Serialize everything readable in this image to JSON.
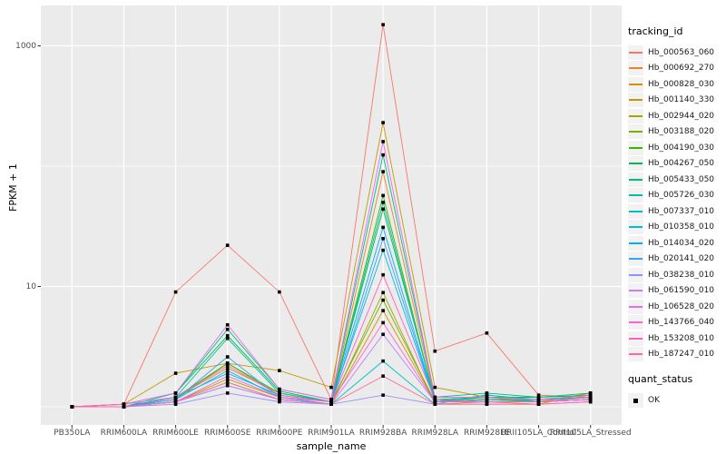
{
  "chart_data": {
    "type": "line",
    "xlabel": "sample_name",
    "ylabel": "FPKM + 1",
    "y_scale": "log10",
    "y_major_ticks": [
      {
        "label": "10",
        "value": 10
      },
      {
        "label": "1000",
        "value": 1000
      }
    ],
    "y_minor_values": [
      1,
      100
    ],
    "categories": [
      "PB350LA",
      "RRIM600LA",
      "RRIM600LE",
      "RRIM600SE",
      "RRIM600PE",
      "RRIM901LA",
      "RRIM928BA",
      "RRIM928LA",
      "RRIM928LE",
      "RRII105LA_Control",
      "RRII105LA_Stressed"
    ],
    "series": [
      {
        "name": "Hb_000563_060",
        "color": "#F8766D",
        "values": [
          1.0,
          1.05,
          9.0,
          22,
          9.0,
          1.15,
          1500,
          2.9,
          4.1,
          1.25,
          1.2
        ]
      },
      {
        "name": "Hb_000692_270",
        "color": "#EA8331",
        "values": [
          1.0,
          1.0,
          1.2,
          2.1,
          1.3,
          1.1,
          90,
          1.15,
          1.1,
          1.1,
          1.15
        ]
      },
      {
        "name": "Hb_000828_030",
        "color": "#D89000",
        "values": [
          1.0,
          1.0,
          1.1,
          1.6,
          1.15,
          1.05,
          6.3,
          1.1,
          1.1,
          1.05,
          1.3
        ]
      },
      {
        "name": "Hb_001140_330",
        "color": "#C09B00",
        "values": [
          1.0,
          1.05,
          1.9,
          2.3,
          2.0,
          1.45,
          230,
          1.45,
          1.2,
          1.1,
          1.3
        ]
      },
      {
        "name": "Hb_002944_020",
        "color": "#A3A500",
        "values": [
          1.0,
          1.0,
          1.1,
          1.7,
          1.2,
          1.05,
          8.9,
          1.05,
          1.1,
          1.1,
          1.2
        ]
      },
      {
        "name": "Hb_003188_020",
        "color": "#7CAE00",
        "values": [
          1.0,
          1.0,
          1.15,
          2.3,
          1.25,
          1.1,
          7.7,
          1.1,
          1.15,
          1.15,
          1.2
        ]
      },
      {
        "name": "Hb_004190_030",
        "color": "#39B600",
        "values": [
          1.0,
          1.0,
          1.2,
          2.3,
          1.3,
          1.1,
          57,
          1.1,
          1.2,
          1.15,
          1.25
        ]
      },
      {
        "name": "Hb_004267_050",
        "color": "#00BB4E",
        "values": [
          1.0,
          1.05,
          1.3,
          3.9,
          1.35,
          1.1,
          44,
          1.15,
          1.2,
          1.2,
          1.25
        ]
      },
      {
        "name": "Hb_005433_050",
        "color": "#00BF7D",
        "values": [
          1.0,
          1.0,
          1.3,
          4.4,
          1.4,
          1.15,
          124,
          1.2,
          1.3,
          1.2,
          1.3
        ]
      },
      {
        "name": "Hb_005726_030",
        "color": "#00C1A3",
        "values": [
          1.0,
          1.0,
          1.2,
          3.7,
          1.3,
          1.1,
          50,
          1.1,
          1.25,
          1.15,
          1.2
        ]
      },
      {
        "name": "Hb_007337_010",
        "color": "#00BFC4",
        "values": [
          1.0,
          1.0,
          1.1,
          1.5,
          1.15,
          1.05,
          2.4,
          1.05,
          1.26,
          1.1,
          1.15
        ]
      },
      {
        "name": "Hb_010358_010",
        "color": "#00BAE0",
        "values": [
          1.0,
          1.0,
          1.15,
          2.0,
          1.2,
          1.1,
          20,
          1.1,
          1.15,
          1.1,
          1.2
        ]
      },
      {
        "name": "Hb_014034_020",
        "color": "#00B0F6",
        "values": [
          1.0,
          1.0,
          1.2,
          1.9,
          1.25,
          1.1,
          31,
          1.1,
          1.15,
          1.1,
          1.15
        ]
      },
      {
        "name": "Hb_020141_020",
        "color": "#35A2FF",
        "values": [
          1.0,
          1.0,
          1.15,
          2.6,
          1.2,
          1.05,
          25,
          1.1,
          1.1,
          1.1,
          1.15
        ]
      },
      {
        "name": "Hb_038238_010",
        "color": "#9590FF",
        "values": [
          1.0,
          1.0,
          1.05,
          1.3,
          1.1,
          1.05,
          1.25,
          1.05,
          1.05,
          1.05,
          1.1
        ]
      },
      {
        "name": "Hb_061590_010",
        "color": "#C77CFF",
        "values": [
          1.0,
          1.0,
          1.1,
          1.5,
          1.15,
          1.05,
          4.0,
          1.1,
          1.1,
          1.1,
          1.15
        ]
      },
      {
        "name": "Hb_106528_020",
        "color": "#E76BF3",
        "values": [
          1.0,
          1.05,
          1.3,
          4.8,
          1.4,
          1.15,
          160,
          1.2,
          1.2,
          1.15,
          1.25
        ]
      },
      {
        "name": "Hb_143766_040",
        "color": "#FA62DB",
        "values": [
          1.0,
          1.0,
          1.1,
          1.8,
          1.2,
          1.1,
          5.0,
          1.1,
          1.1,
          1.1,
          1.15
        ]
      },
      {
        "name": "Hb_153208_010",
        "color": "#FF62BC",
        "values": [
          1.0,
          1.05,
          1.2,
          2.2,
          1.25,
          1.1,
          12.5,
          1.15,
          1.1,
          1.1,
          1.2
        ]
      },
      {
        "name": "Hb_187247_010",
        "color": "#FF6A98",
        "values": [
          1.0,
          1.0,
          1.1,
          1.6,
          1.15,
          1.05,
          1.8,
          1.05,
          1.05,
          1.05,
          1.1
        ]
      }
    ],
    "point_marker": {
      "shape": "square",
      "color": "#000000"
    }
  },
  "legend": {
    "tracking_title": "tracking_id",
    "quant_title": "quant_status",
    "quant_items": [
      {
        "label": "OK"
      }
    ]
  },
  "colors": {
    "panel_bg": "#EBEBEB",
    "grid": "#FFFFFF",
    "axis_text": "#4D4D4D",
    "tick_mark": "#333333",
    "legend_key_bg": "#F2F2F2",
    "point": "#000000"
  }
}
